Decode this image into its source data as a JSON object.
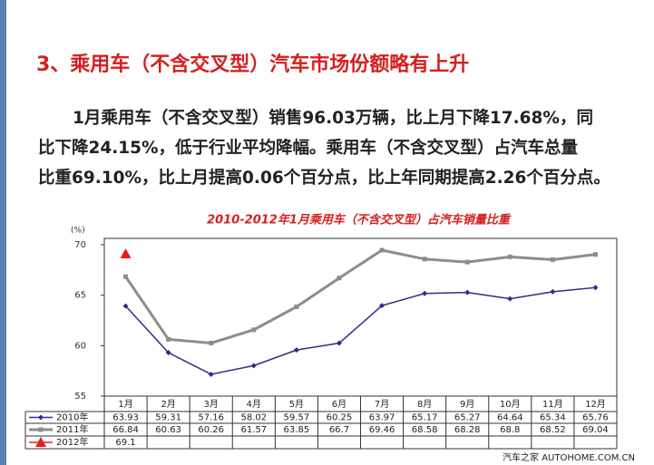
{
  "chart_data": {
    "type": "line",
    "heading": "3、乘用车（不含交叉型）汽车市场份额略有上升",
    "paragraph": [
      "1月乘用车（不含交叉型）销售96.03万辆，比上月下降17.68%，同",
      "比下降24.15%，低于行业平均降幅。乘用车（不含交叉型）占汽车总量",
      "比重69.10%，比上月提高0.06个百分点，比上年同期提高2.26个百分点。"
    ],
    "title": "2010-2012年1月乘用车（不含交叉型）占汽车销量比重",
    "y_label": "(%)",
    "categories": [
      "1月",
      "2月",
      "3月",
      "4月",
      "5月",
      "6月",
      "7月",
      "8月",
      "9月",
      "10月",
      "11月",
      "12月"
    ],
    "series": [
      {
        "name": "2010年",
        "color": "#2e2e86",
        "values": [
          63.93,
          59.31,
          57.16,
          58.02,
          59.57,
          60.25,
          63.97,
          65.17,
          65.27,
          64.64,
          65.34,
          65.76
        ]
      },
      {
        "name": "2011年",
        "color": "#8c8c8c",
        "values": [
          66.84,
          60.63,
          60.26,
          61.57,
          63.85,
          66.7,
          69.46,
          68.58,
          68.28,
          68.8,
          68.52,
          69.04
        ]
      },
      {
        "name": "2012年",
        "color": "#e02020",
        "values": [
          69.1,
          null,
          null,
          null,
          null,
          null,
          null,
          null,
          null,
          null,
          null,
          null
        ]
      }
    ],
    "ylim": [
      55,
      70
    ],
    "yticks": [
      55,
      60,
      65,
      70
    ],
    "watermark": "汽车之家 AUTOHOME.COM.CN"
  }
}
